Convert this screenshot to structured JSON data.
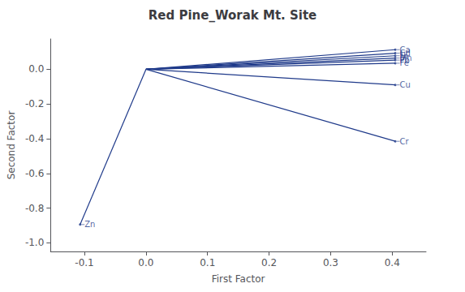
{
  "chart_data": {
    "type": "vector",
    "title": "Red Pine_Worak Mt. Site",
    "xlabel": "First Factor",
    "ylabel": "Second Factor",
    "origin": [
      0,
      0
    ],
    "labels": [
      "Zn",
      "Cr",
      "Cu",
      "Fe",
      "Pb",
      "Mn",
      "Ni",
      "Cd",
      "Ca"
    ],
    "x": [
      -0.107,
      0.405,
      0.405,
      0.405,
      0.405,
      0.405,
      0.405,
      0.405,
      0.405
    ],
    "values": [
      -0.895,
      -0.415,
      -0.09,
      0.035,
      0.053,
      0.065,
      0.078,
      0.093,
      0.113
    ],
    "color": "#1F3A8A",
    "xlim": [
      -0.155,
      0.455
    ],
    "ylim": [
      -1.05,
      0.175
    ],
    "xticks": [
      -0.1,
      {
        "value": 0,
        "label": "0.0"
      },
      0.1,
      0.2,
      0.3,
      0.4
    ],
    "yticks": [
      {
        "value": -1,
        "label": "-1.0"
      },
      -0.8,
      -0.6,
      -0.4,
      -0.2,
      {
        "value": 0,
        "label": "0.0"
      }
    ],
    "grid": false
  }
}
